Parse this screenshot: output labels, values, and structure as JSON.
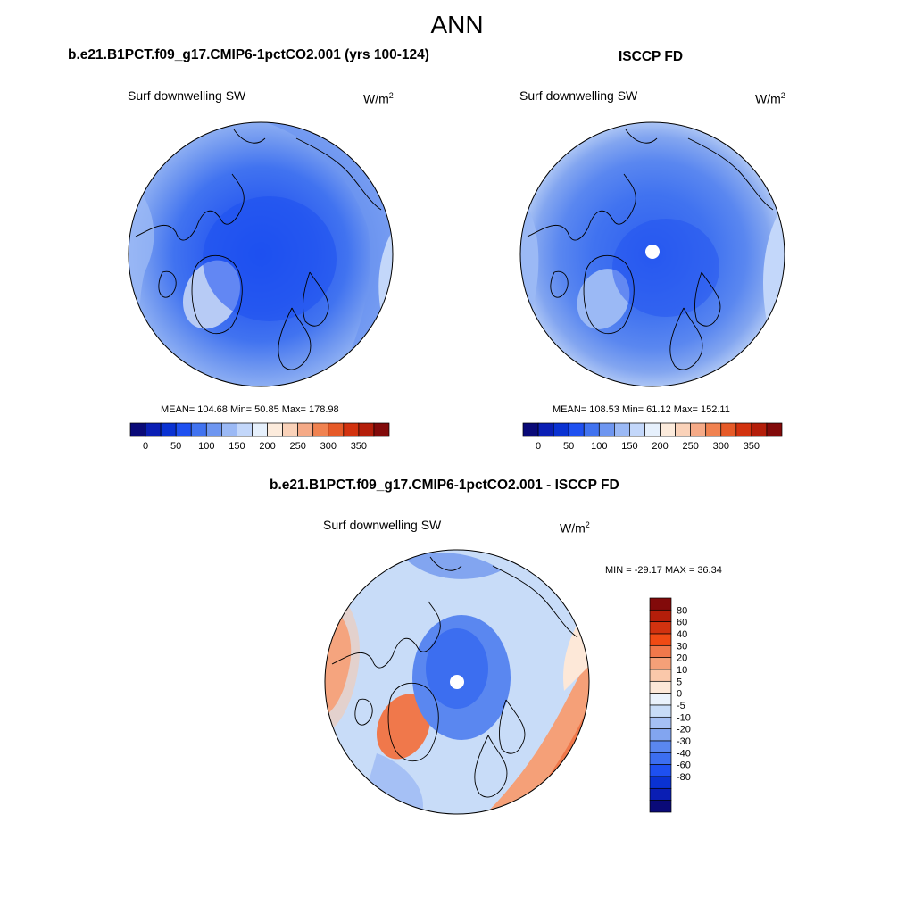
{
  "figure": {
    "title": "ANN",
    "panels": [
      {
        "id": "model",
        "case_title": "b.e21.B1PCT.f09_g17.CMIP6-1pctCO2.001 (yrs 100-124)",
        "variable_label": "Surf downwelling SW",
        "units_label": "W/m",
        "units_superscript": "2",
        "stats": "MEAN= 104.68  Min=  50.85  Max= 178.98",
        "mean": 104.68,
        "min": 50.85,
        "max": 178.98
      },
      {
        "id": "obs",
        "case_title": "ISCCP FD",
        "variable_label": "Surf downwelling SW",
        "units_label": "W/m",
        "units_superscript": "2",
        "stats": "MEAN= 108.53  Min=  61.12  Max= 152.11",
        "mean": 108.53,
        "min": 61.12,
        "max": 152.11
      },
      {
        "id": "diff",
        "case_title": "b.e21.B1PCT.f09_g17.CMIP6-1pctCO2.001 - ISCCP FD",
        "variable_label": "Surf downwelling SW",
        "units_label": "W/m",
        "units_superscript": "2",
        "stats": "MIN = -29.17 MAX =  36.34",
        "min": -29.17,
        "max": 36.34
      }
    ]
  },
  "colorbar_abs": {
    "colors": [
      "#0a0a78",
      "#0a1eb4",
      "#0a32d2",
      "#1e50f0",
      "#4173f0",
      "#6e96f0",
      "#9bb9f5",
      "#c3d7fa",
      "#e6f0fc",
      "#fcebdc",
      "#fad2b9",
      "#f5aa87",
      "#f08250",
      "#e65a28",
      "#d2320f",
      "#b41e0a",
      "#820a0a"
    ],
    "ticks": [
      "0",
      "50",
      "100",
      "150",
      "200",
      "250",
      "300",
      "350"
    ]
  },
  "colorbar_diff": {
    "colors_top_to_bottom": [
      "#820a0a",
      "#b41e0a",
      "#d2320f",
      "#f04a14",
      "#f0784b",
      "#f5a078",
      "#fac8aa",
      "#fde8d8",
      "#eaf2fc",
      "#c8dcf8",
      "#a5c0f5",
      "#82a5f0",
      "#5a87f0",
      "#3c6ef0",
      "#1e50f0",
      "#0a32d2",
      "#0a1eb4",
      "#0a0a78"
    ],
    "labels": [
      "80",
      "60",
      "40",
      "30",
      "20",
      "10",
      "5",
      "0",
      "-5",
      "-10",
      "-20",
      "-30",
      "-40",
      "-60",
      "-80"
    ]
  }
}
